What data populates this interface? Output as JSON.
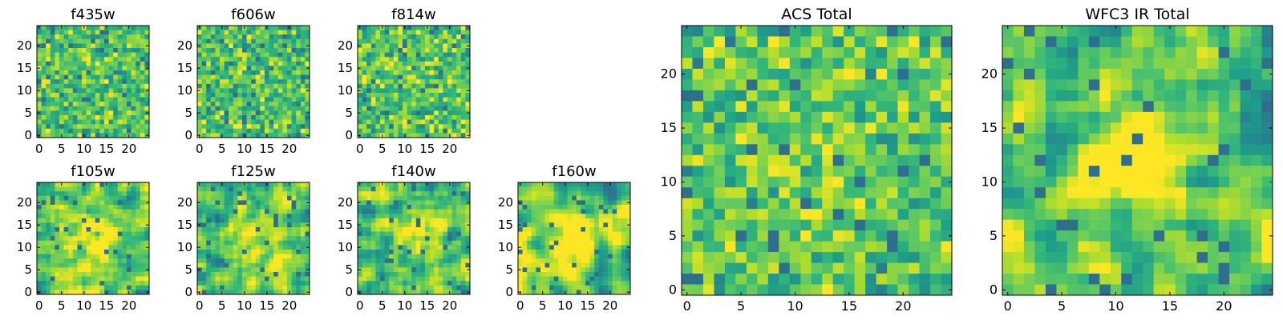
{
  "chart_data": [
    {
      "type": "heatmap",
      "title": "f435w",
      "grid_size": 25,
      "xticks": [
        0,
        5,
        10,
        15,
        20
      ],
      "yticks": [
        0,
        5,
        10,
        15,
        20
      ],
      "xlim": [
        -0.5,
        24.5
      ],
      "ylim": [
        -0.5,
        24.5
      ],
      "colormap": "viridis",
      "center_blob": 0.0,
      "smooth": 0,
      "seed": 11
    },
    {
      "type": "heatmap",
      "title": "f606w",
      "grid_size": 25,
      "xticks": [
        0,
        5,
        10,
        15,
        20
      ],
      "yticks": [
        0,
        5,
        10,
        15,
        20
      ],
      "xlim": [
        -0.5,
        24.5
      ],
      "ylim": [
        -0.5,
        24.5
      ],
      "colormap": "viridis",
      "center_blob": 0.0,
      "smooth": 0,
      "seed": 23
    },
    {
      "type": "heatmap",
      "title": "f814w",
      "grid_size": 25,
      "xticks": [
        0,
        5,
        10,
        15,
        20
      ],
      "yticks": [
        0,
        5,
        10,
        15,
        20
      ],
      "xlim": [
        -0.5,
        24.5
      ],
      "ylim": [
        -0.5,
        24.5
      ],
      "colormap": "viridis",
      "center_blob": 0.0,
      "smooth": 0,
      "seed": 37
    },
    {
      "type": "heatmap",
      "title": "f105w",
      "grid_size": 25,
      "xticks": [
        0,
        5,
        10,
        15,
        20
      ],
      "yticks": [
        0,
        5,
        10,
        15,
        20
      ],
      "xlim": [
        -0.5,
        24.5
      ],
      "ylim": [
        -0.5,
        24.5
      ],
      "colormap": "viridis",
      "center_blob": 0.35,
      "smooth": 1,
      "seed": 41
    },
    {
      "type": "heatmap",
      "title": "f125w",
      "grid_size": 25,
      "xticks": [
        0,
        5,
        10,
        15,
        20
      ],
      "yticks": [
        0,
        5,
        10,
        15,
        20
      ],
      "xlim": [
        -0.5,
        24.5
      ],
      "ylim": [
        -0.5,
        24.5
      ],
      "colormap": "viridis",
      "center_blob": 0.3,
      "smooth": 1,
      "seed": 53
    },
    {
      "type": "heatmap",
      "title": "f140w",
      "grid_size": 25,
      "xticks": [
        0,
        5,
        10,
        15,
        20
      ],
      "yticks": [
        0,
        5,
        10,
        15,
        20
      ],
      "xlim": [
        -0.5,
        24.5
      ],
      "ylim": [
        -0.5,
        24.5
      ],
      "colormap": "viridis",
      "center_blob": 0.35,
      "smooth": 1,
      "seed": 67
    },
    {
      "type": "heatmap",
      "title": "f160w",
      "grid_size": 25,
      "xticks": [
        0,
        5,
        10,
        15,
        20
      ],
      "yticks": [
        0,
        5,
        10,
        15,
        20
      ],
      "xlim": [
        -0.5,
        24.5
      ],
      "ylim": [
        -0.5,
        24.5
      ],
      "colormap": "viridis",
      "center_blob": 0.4,
      "smooth": 2,
      "seed": 79
    },
    {
      "type": "heatmap",
      "title": "ACS Total",
      "grid_size": 25,
      "xticks": [
        0,
        5,
        10,
        15,
        20
      ],
      "yticks": [
        0,
        5,
        10,
        15,
        20
      ],
      "xlim": [
        -0.5,
        24.5
      ],
      "ylim": [
        -0.5,
        24.5
      ],
      "colormap": "viridis",
      "center_blob": 0.1,
      "smooth": 0,
      "seed": 97
    },
    {
      "type": "heatmap",
      "title": "WFC3 IR Total",
      "grid_size": 25,
      "xticks": [
        0,
        5,
        10,
        15,
        20
      ],
      "yticks": [
        0,
        5,
        10,
        15,
        20
      ],
      "xlim": [
        -0.5,
        24.5
      ],
      "ylim": [
        -0.5,
        24.5
      ],
      "colormap": "viridis",
      "center_blob": 0.6,
      "smooth": 1,
      "seed": 131
    }
  ]
}
